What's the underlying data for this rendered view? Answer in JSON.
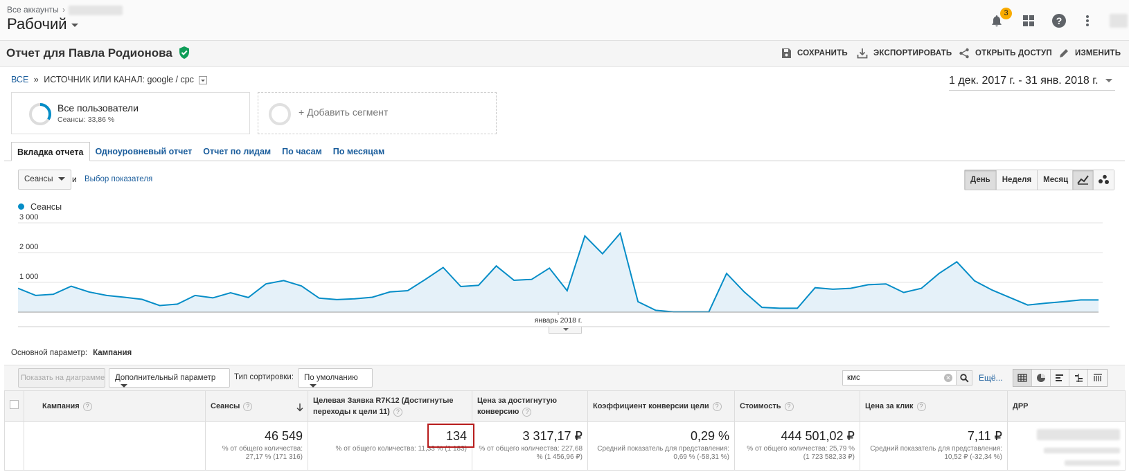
{
  "header": {
    "all_accounts": "Все аккаунты",
    "view_name": "Рабочий",
    "notifications_count": "3",
    "icons": [
      "bell-icon",
      "apps-grid-icon",
      "help-icon",
      "more-vert-icon",
      "account-avatar"
    ]
  },
  "report": {
    "title": "Отчет для Павла Родионова",
    "actions": {
      "save": "СОХРАНИТЬ",
      "export": "ЭКСПОРТИРОВАТЬ",
      "share": "ОТКРЫТЬ ДОСТУП",
      "edit": "ИЗМЕНИТЬ"
    }
  },
  "breadcrumb": {
    "all": "ВСЕ",
    "sep": "»",
    "current": "ИСТОЧНИК ИЛИ КАНАЛ: google / cpc"
  },
  "date_range": "1 дек. 2017 г. - 31 янв. 2018 г.",
  "segments": {
    "active_name": "Все пользователи",
    "active_sub": "Сеансы: 33,86 %",
    "active_fraction": 0.3386,
    "add_label": "+ Добавить сегмент"
  },
  "tabs": [
    "Вкладка отчета",
    "Одноуровневый отчет",
    "Отчет по лидам",
    "По часам",
    "По месяцам"
  ],
  "controls": {
    "metric_select": "Сеансы",
    "and": "и",
    "choose_metric": "Выбор показателя",
    "granularity": [
      "День",
      "Неделя",
      "Месяц"
    ],
    "granularity_selected": "День"
  },
  "chart_data": {
    "type": "area",
    "series": [
      {
        "name": "Сеансы",
        "values": [
          800,
          560,
          600,
          870,
          680,
          560,
          500,
          430,
          220,
          270,
          560,
          480,
          650,
          490,
          950,
          1060,
          880,
          470,
          420,
          450,
          500,
          680,
          720,
          1100,
          1500,
          860,
          900,
          1550,
          1070,
          1100,
          1480,
          720,
          2560,
          1960,
          2650,
          350,
          60,
          10,
          10,
          10,
          1300,
          680,
          160,
          130,
          130,
          820,
          770,
          800,
          920,
          950,
          660,
          800,
          1300,
          1690,
          1050,
          740,
          490,
          240,
          300,
          350,
          410,
          410
        ]
      }
    ],
    "y_ticks": [
      "3 000",
      "2 000",
      "1 000"
    ],
    "ylim": [
      0,
      3000
    ],
    "x_label": "январь 2018 г.",
    "color": "#058dc7",
    "fill": "#e5f1f9"
  },
  "table": {
    "primary_label": "Основной параметр:",
    "primary_value": "Кампания",
    "show_on_chart": "Показать на диаграмме",
    "secondary_dim": "Дополнительный параметр",
    "sort_label": "Тип сортировки:",
    "sort_value": "По умолчанию",
    "search_value": "кмс",
    "more": "Ещё...",
    "columns": [
      "Кампания",
      "Сеансы",
      "Целевая Заявка R7K12 (Достигнутые переходы к цели 11)",
      "Цена за достигнутую конверсию",
      "Коэффициент конверсии цели",
      "Стоимость",
      "Цена за клик",
      "ДРР"
    ],
    "totals": {
      "sessions": "46 549",
      "sessions_sub": "% от общего количества: 27,17 % (171 316)",
      "goal": "134",
      "goal_sub": "% от общего количества: 11,33 % (1 183)",
      "cpa": "3 317,17 ₽",
      "cpa_sub": "% от общего количества: 227,68 % (1 456,96 ₽)",
      "cr": "0,29 %",
      "cr_sub": "Средний показатель для представления: 0,69 % (-58,31 %)",
      "cost": "444 501,02 ₽",
      "cost_sub": "% от общего количества: 25,79 % (1 723 582,33 ₽)",
      "cpc": "7,11 ₽",
      "cpc_sub": "Средний показатель для представления: 10,52 ₽ (-32,34 %)"
    }
  }
}
